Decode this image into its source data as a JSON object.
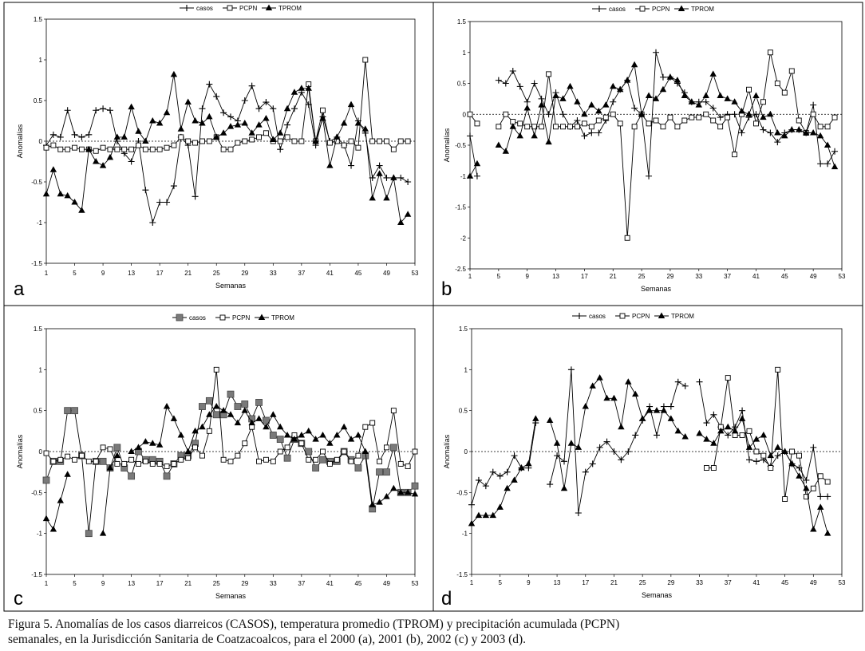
{
  "caption": {
    "line1": "Figura 5. Anomalías de los casos diarreicos (CASOS), temperatura promedio (TPROM) y precipitación acumulada (PCPN)",
    "line2": "semanales, en la Jurisdicción Sanitaria de Coatzacoalcos, para el 2000 (a), 2001 (b), 2002 (c) y 2003 (d)."
  },
  "chart_data": [
    {
      "panel_label": "a",
      "type": "line",
      "xlabel": "Semanas",
      "ylabel": "Anomalías",
      "xlim": [
        1,
        53
      ],
      "ylim": [
        -1.5,
        1.5
      ],
      "x_ticks": [
        1,
        5,
        9,
        13,
        17,
        21,
        25,
        29,
        33,
        37,
        41,
        45,
        49,
        53
      ],
      "y_ticks": [
        "-1.5",
        "-1",
        "-0.5",
        "0",
        "0.5",
        "1",
        "1.5"
      ],
      "y_tick_values": [
        -1.5,
        -1,
        -0.5,
        0,
        0.5,
        1,
        1.5
      ],
      "legend_position": "top-center",
      "series": [
        {
          "name": "casos",
          "marker": "plus",
          "values": [
            -0.05,
            0.08,
            0.05,
            0.38,
            0.08,
            0.05,
            0.08,
            0.38,
            0.4,
            0.38,
            0.0,
            -0.15,
            -0.25,
            0.0,
            -0.6,
            -1.0,
            -0.75,
            -0.75,
            -0.55,
            0.05,
            -0.05,
            -0.68,
            0.4,
            0.7,
            0.55,
            0.35,
            0.3,
            0.25,
            0.5,
            0.68,
            0.4,
            0.48,
            0.4,
            -0.1,
            0.2,
            0.4,
            0.6,
            0.45,
            -0.05,
            0.3,
            0.0,
            0.05,
            -0.05,
            -0.3,
            0.25,
            0.1,
            -0.45,
            -0.3,
            -0.45,
            -0.45,
            -0.45,
            -0.5
          ]
        },
        {
          "name": "PCPN",
          "marker": "square",
          "values": [
            -0.08,
            -0.05,
            -0.1,
            -0.1,
            -0.08,
            -0.1,
            -0.1,
            -0.12,
            -0.08,
            -0.1,
            -0.1,
            -0.1,
            -0.1,
            -0.05,
            -0.1,
            -0.1,
            -0.1,
            -0.08,
            -0.05,
            0.05,
            0.0,
            -0.02,
            0.0,
            0.0,
            0.05,
            -0.1,
            -0.1,
            -0.02,
            0.0,
            0.02,
            0.05,
            0.1,
            0.0,
            0.0,
            0.05,
            0.0,
            0.0,
            0.7,
            0.0,
            0.38,
            -0.02,
            0.0,
            -0.05,
            0.0,
            -0.08,
            1.0,
            0.0,
            0.0,
            0.0,
            -0.1,
            0.0,
            0.0
          ]
        },
        {
          "name": "TPROM",
          "marker": "triangle",
          "values": [
            -0.65,
            -0.35,
            -0.65,
            -0.67,
            -0.75,
            -0.85,
            -0.1,
            -0.25,
            -0.3,
            -0.2,
            0.05,
            0.05,
            0.42,
            0.12,
            0.0,
            0.25,
            0.22,
            0.35,
            0.82,
            0.15,
            0.48,
            0.25,
            0.22,
            0.3,
            0.05,
            0.1,
            0.18,
            0.2,
            0.22,
            0.1,
            0.2,
            0.28,
            0.02,
            0.1,
            0.4,
            0.6,
            0.65,
            0.65,
            0.0,
            0.28,
            -0.3,
            0.05,
            0.22,
            0.45,
            0.22,
            0.15,
            -0.7,
            -0.4,
            -0.7,
            -0.45,
            -1.0,
            -0.9
          ]
        }
      ]
    },
    {
      "panel_label": "b",
      "type": "line",
      "xlabel": "Semanas",
      "ylabel": "Anomalías",
      "xlim": [
        1,
        53
      ],
      "ylim": [
        -2.5,
        1.5
      ],
      "x_ticks": [
        1,
        5,
        9,
        13,
        17,
        21,
        25,
        29,
        33,
        37,
        41,
        45,
        49,
        53
      ],
      "y_ticks": [
        "-2.5",
        "-2",
        "-1.5",
        "-1",
        "-0.5",
        "0",
        "0.5",
        "1",
        "1.5"
      ],
      "y_tick_values": [
        -2.5,
        -2,
        -1.5,
        -1,
        -0.5,
        0,
        0.5,
        1,
        1.5
      ],
      "legend_position": "top-center",
      "series": [
        {
          "name": "casos",
          "marker": "plus",
          "values": [
            -0.35,
            -1.0,
            null,
            null,
            0.55,
            0.5,
            0.7,
            0.45,
            0.2,
            0.5,
            0.25,
            0.0,
            0.35,
            0.0,
            -0.2,
            -0.1,
            -0.35,
            -0.3,
            -0.3,
            -0.1,
            0.2,
            0.4,
            0.55,
            0.1,
            0.0,
            -1.0,
            1.0,
            0.6,
            0.6,
            0.5,
            0.35,
            0.2,
            0.2,
            0.2,
            0.1,
            -0.05,
            0.0,
            0.0,
            -0.3,
            -0.05,
            0.0,
            -0.25,
            -0.3,
            -0.45,
            -0.3,
            -0.25,
            -0.25,
            -0.3,
            0.15,
            -0.8,
            -0.8,
            -0.6
          ]
        },
        {
          "name": "PCPN",
          "marker": "square",
          "values": [
            0.0,
            -0.15,
            null,
            null,
            -0.2,
            0.0,
            -0.12,
            -0.15,
            -0.2,
            -0.2,
            -0.2,
            0.65,
            -0.2,
            -0.2,
            -0.2,
            -0.2,
            -0.15,
            -0.2,
            -0.1,
            -0.05,
            0.0,
            -0.15,
            -2.0,
            -0.2,
            0.0,
            -0.15,
            -0.1,
            -0.2,
            -0.05,
            -0.2,
            -0.1,
            -0.05,
            -0.05,
            0.0,
            -0.1,
            -0.2,
            -0.05,
            -0.65,
            0.0,
            0.4,
            -0.15,
            0.2,
            1.0,
            0.5,
            0.35,
            0.7,
            -0.1,
            -0.3,
            0.0,
            -0.2,
            -0.2,
            -0.05
          ]
        },
        {
          "name": "TPROM",
          "marker": "triangle",
          "values": [
            -1.0,
            -0.8,
            null,
            null,
            -0.5,
            -0.6,
            -0.2,
            -0.35,
            0.1,
            -0.35,
            0.15,
            -0.45,
            0.3,
            0.25,
            0.45,
            0.2,
            0.0,
            0.15,
            0.05,
            0.15,
            0.45,
            0.4,
            0.55,
            0.8,
            0.0,
            0.3,
            0.25,
            0.4,
            0.6,
            0.55,
            0.3,
            0.2,
            0.15,
            0.3,
            0.65,
            0.3,
            0.25,
            0.2,
            0.05,
            0.0,
            0.3,
            -0.05,
            0.0,
            -0.3,
            -0.35,
            -0.25,
            -0.25,
            -0.3,
            -0.3,
            -0.35,
            -0.5,
            -0.85
          ]
        }
      ]
    },
    {
      "panel_label": "c",
      "type": "line",
      "xlabel": "Semanas",
      "ylabel": "Anomalías",
      "xlim": [
        1,
        53
      ],
      "ylim": [
        -1.5,
        1.5
      ],
      "x_ticks": [
        1,
        5,
        9,
        13,
        17,
        21,
        25,
        29,
        33,
        37,
        41,
        45,
        49,
        53
      ],
      "y_ticks": [
        "-1.5",
        "-1",
        "-0.5",
        "0",
        "0.5",
        "1",
        "1.5"
      ],
      "y_tick_values": [
        -1.5,
        -1,
        -0.5,
        0,
        0.5,
        1,
        1.5
      ],
      "legend_position": "top-center",
      "series": [
        {
          "name": "casos",
          "marker": "filled-square",
          "values": [
            -0.35,
            -0.12,
            -0.12,
            0.5,
            0.5,
            -0.05,
            -1.0,
            -0.12,
            -0.12,
            -0.2,
            0.05,
            -0.2,
            -0.3,
            0.0,
            -0.1,
            -0.1,
            -0.12,
            -0.3,
            -0.15,
            -0.05,
            -0.05,
            0.1,
            0.55,
            0.62,
            0.45,
            0.45,
            0.7,
            0.55,
            0.58,
            0.4,
            0.6,
            0.38,
            0.2,
            0.15,
            -0.08,
            0.15,
            0.1,
            0.0,
            -0.2,
            -0.1,
            -0.12,
            -0.12,
            0.0,
            -0.1,
            -0.2,
            -0.05,
            -0.7,
            -0.25,
            -0.25,
            0.05,
            -0.5,
            -0.5,
            -0.42
          ]
        },
        {
          "name": "PCPN",
          "marker": "square",
          "values": [
            -0.02,
            -0.12,
            -0.1,
            -0.06,
            -0.1,
            -0.05,
            -0.12,
            -0.12,
            0.05,
            0.03,
            -0.15,
            -0.15,
            -0.1,
            -0.15,
            -0.12,
            -0.15,
            -0.15,
            -0.18,
            -0.15,
            -0.1,
            -0.08,
            0.05,
            -0.05,
            0.25,
            1.0,
            -0.1,
            -0.12,
            -0.05,
            0.1,
            0.3,
            -0.12,
            -0.1,
            -0.12,
            0.0,
            0.05,
            0.2,
            0.1,
            -0.1,
            -0.1,
            0.0,
            -0.15,
            -0.1,
            0.0,
            -0.12,
            -0.05,
            0.3,
            0.35,
            -0.12,
            0.05,
            0.5,
            -0.15,
            -0.18,
            0.0
          ]
        },
        {
          "name": "TPROM",
          "marker": "triangle",
          "values": [
            -0.82,
            -0.95,
            -0.6,
            -0.28,
            null,
            null,
            null,
            null,
            -1.0,
            -0.2,
            -0.05,
            null,
            0.0,
            0.05,
            0.12,
            0.1,
            0.08,
            0.55,
            0.4,
            0.2,
            0.0,
            0.25,
            0.3,
            0.45,
            0.55,
            0.5,
            0.45,
            0.35,
            0.5,
            0.35,
            0.4,
            0.3,
            0.45,
            0.3,
            0.2,
            0.15,
            0.2,
            0.25,
            0.15,
            0.2,
            0.1,
            0.2,
            0.3,
            0.15,
            0.2,
            0.0,
            -0.65,
            -0.62,
            -0.55,
            -0.45,
            -0.5,
            -0.5,
            -0.52
          ]
        }
      ]
    },
    {
      "panel_label": "d",
      "type": "line",
      "xlabel": "Semanas",
      "ylabel": "Anomalías",
      "xlim": [
        1,
        53
      ],
      "ylim": [
        -1.5,
        1.5
      ],
      "x_ticks": [
        1,
        5,
        9,
        13,
        17,
        21,
        25,
        29,
        33,
        37,
        41,
        45,
        49,
        53
      ],
      "y_ticks": [
        "-1.5",
        "-1",
        "-0.5",
        "0",
        "0.5",
        "1",
        "1.5"
      ],
      "y_tick_values": [
        -1.5,
        -1,
        -0.5,
        0,
        0.5,
        1,
        1.5
      ],
      "legend_position": "top-center",
      "series": [
        {
          "name": "casos",
          "marker": "plus",
          "values": [
            -0.65,
            -0.35,
            -0.42,
            -0.25,
            -0.3,
            -0.25,
            -0.05,
            -0.2,
            -0.2,
            0.35,
            null,
            -0.4,
            -0.05,
            -0.12,
            1.0,
            -0.75,
            -0.25,
            -0.15,
            0.05,
            0.12,
            0.0,
            -0.1,
            0.0,
            0.2,
            0.38,
            0.55,
            0.2,
            0.55,
            0.55,
            0.85,
            0.8,
            null,
            0.85,
            0.35,
            0.45,
            0.3,
            0.2,
            0.3,
            0.5,
            -0.1,
            -0.12,
            -0.1,
            -0.18,
            -0.05,
            0.0,
            -0.15,
            -0.2,
            -0.35,
            0.05,
            -0.55,
            -0.55,
            null,
            null
          ]
        },
        {
          "name": "PCPN",
          "marker": "square",
          "values": [
            null,
            null,
            null,
            null,
            null,
            null,
            null,
            null,
            null,
            null,
            null,
            null,
            null,
            null,
            null,
            null,
            null,
            null,
            null,
            null,
            null,
            null,
            null,
            null,
            null,
            null,
            null,
            null,
            null,
            null,
            null,
            null,
            null,
            -0.2,
            -0.2,
            0.3,
            0.9,
            0.2,
            0.2,
            0.25,
            0.0,
            -0.05,
            -0.2,
            1.0,
            -0.58,
            0.0,
            -0.05,
            -0.55,
            -0.45,
            -0.3,
            -0.37,
            null,
            null
          ]
        },
        {
          "name": "TPROM",
          "marker": "triangle",
          "values": [
            -0.88,
            -0.78,
            -0.78,
            -0.78,
            -0.68,
            -0.45,
            -0.35,
            -0.2,
            -0.15,
            0.4,
            null,
            0.38,
            0.1,
            -0.45,
            0.1,
            0.05,
            0.55,
            0.8,
            0.9,
            0.65,
            0.65,
            0.3,
            0.85,
            0.7,
            0.4,
            0.5,
            0.5,
            0.5,
            0.4,
            0.25,
            0.18,
            null,
            0.22,
            0.15,
            0.1,
            0.25,
            0.3,
            0.25,
            0.4,
            0.05,
            0.15,
            0.2,
            -0.05,
            0.05,
            0.0,
            -0.15,
            -0.3,
            -0.45,
            -0.95,
            -0.68,
            -1.0,
            null,
            null
          ]
        }
      ]
    }
  ]
}
